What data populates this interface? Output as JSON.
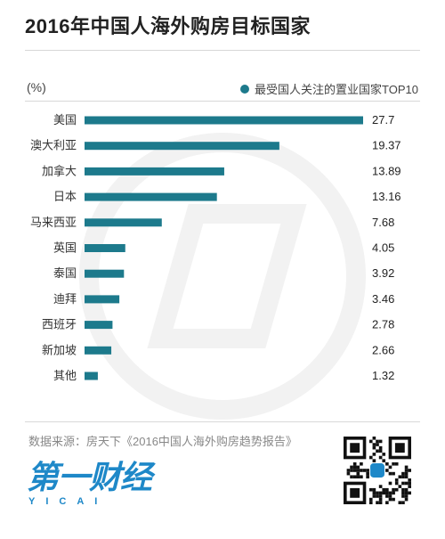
{
  "title": "2016年中国人海外购房目标国家",
  "unit_label": "(%)",
  "legend": {
    "label": "最受国人关注的置业国家TOP10",
    "color": "#1d7a8c"
  },
  "source": "数据来源：房天下《2016中国人海外购房趋势报告》",
  "logo": {
    "main": "第一财经",
    "sub": "YICAI",
    "color": "#1e88c8"
  },
  "chart_data": {
    "type": "bar",
    "orientation": "horizontal",
    "categories": [
      "美国",
      "澳大利亚",
      "加拿大",
      "日本",
      "马来西亚",
      "英国",
      "泰国",
      "迪拜",
      "西班牙",
      "新加坡",
      "其他"
    ],
    "values": [
      27.7,
      19.37,
      13.89,
      13.16,
      7.68,
      4.05,
      3.92,
      3.46,
      2.78,
      2.66,
      1.32
    ],
    "value_labels": [
      "27.7",
      "19.37",
      "13.89",
      "13.16",
      "7.68",
      "4.05",
      "3.92",
      "3.46",
      "2.78",
      "2.66",
      "1.32"
    ],
    "series": [
      {
        "name": "最受国人关注的置业国家TOP10",
        "values": [
          27.7,
          19.37,
          13.89,
          13.16,
          7.68,
          4.05,
          3.92,
          3.46,
          2.78,
          2.66,
          1.32
        ]
      }
    ],
    "xlim": [
      0,
      27.7
    ],
    "bar_color": "#1d7a8c",
    "grid": false,
    "legend_position": "top-right"
  }
}
